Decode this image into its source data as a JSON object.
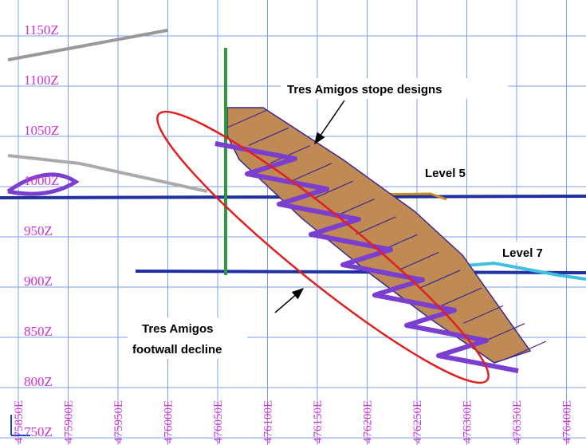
{
  "elevation_labels": [
    "1150Z",
    "1100Z",
    "1050Z",
    "1000Z",
    "950Z",
    "900Z",
    "850Z",
    "800Z",
    "750Z"
  ],
  "easting_labels": [
    "475850E",
    "475900E",
    "475950E",
    "476000E",
    "476050E",
    "476100E",
    "476150E",
    "476200E",
    "476250E",
    "476300E",
    "476350E",
    "476400E"
  ],
  "annotations": {
    "stope": "Tres Amigos stope designs",
    "level5": "Level 5",
    "level7": "Level 7",
    "decline_line1": "Tres Amigos",
    "decline_line2": "footwall decline"
  }
}
